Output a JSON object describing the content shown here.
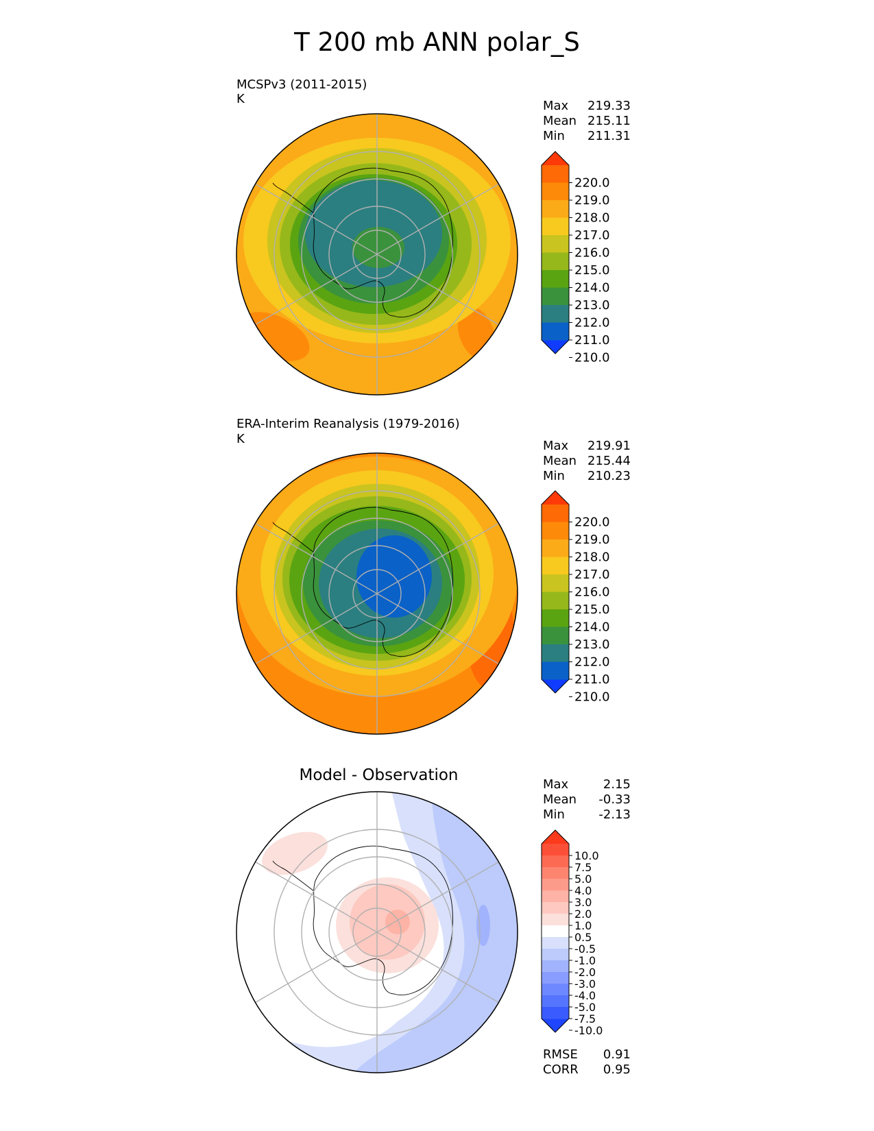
{
  "title": "T 200 mb ANN polar_S",
  "panels": [
    {
      "id": "test",
      "label": "MCSPv3 (2011-2015)",
      "units": "K",
      "stats": [
        {
          "name": "Max",
          "value": "219.33"
        },
        {
          "name": "Mean",
          "value": "215.11"
        },
        {
          "name": "Min",
          "value": "211.31"
        }
      ],
      "colorbar_ticks": [
        "220.0",
        "219.0",
        "218.0",
        "217.0",
        "216.0",
        "215.0",
        "214.0",
        "213.0",
        "212.0",
        "211.0",
        "210.0"
      ]
    },
    {
      "id": "reference",
      "label": "ERA-Interim Reanalysis (1979-2016)",
      "units": "K",
      "stats": [
        {
          "name": "Max",
          "value": "219.91"
        },
        {
          "name": "Mean",
          "value": "215.44"
        },
        {
          "name": "Min",
          "value": "210.23"
        }
      ],
      "colorbar_ticks": [
        "220.0",
        "219.0",
        "218.0",
        "217.0",
        "216.0",
        "215.0",
        "214.0",
        "213.0",
        "212.0",
        "211.0",
        "210.0"
      ]
    },
    {
      "id": "diff",
      "title": "Model - Observation",
      "stats": [
        {
          "name": "Max",
          "value": "2.15"
        },
        {
          "name": "Mean",
          "value": "-0.33"
        },
        {
          "name": "Min",
          "value": "-2.13"
        }
      ],
      "colorbar_ticks": [
        "10.0",
        "7.5",
        "5.0",
        "4.0",
        "3.0",
        "2.0",
        "1.0",
        "0.5",
        "-0.5",
        "-1.0",
        "-2.0",
        "-3.0",
        "-4.0",
        "-5.0",
        "-7.5",
        "-10.0"
      ],
      "metrics": [
        {
          "name": "RMSE",
          "value": "0.91"
        },
        {
          "name": "CORR",
          "value": "0.95"
        }
      ]
    }
  ],
  "colors": {
    "temperature_scale": [
      "#0f3cff",
      "#0a61c7",
      "#2b7f80",
      "#3b923c",
      "#5aa412",
      "#96b81a",
      "#c9c41f",
      "#f8c91f",
      "#fbaa18",
      "#fe8a0a",
      "#fe6a06",
      "#fe3a08"
    ],
    "difference_scale": [
      "#1f45ff",
      "#3a5cff",
      "#5575ff",
      "#6e88ff",
      "#889dff",
      "#a2b3fd",
      "#bccbfb",
      "#d8e0fb",
      "#ffffff",
      "#fbe0dc",
      "#fdc9c0",
      "#fdb3a5",
      "#fd9b8a",
      "#fd846f",
      "#fc6a54",
      "#fc4f38",
      "#fc3b1c"
    ],
    "grid": "#b0b0b0",
    "coastline": "#000000"
  }
}
